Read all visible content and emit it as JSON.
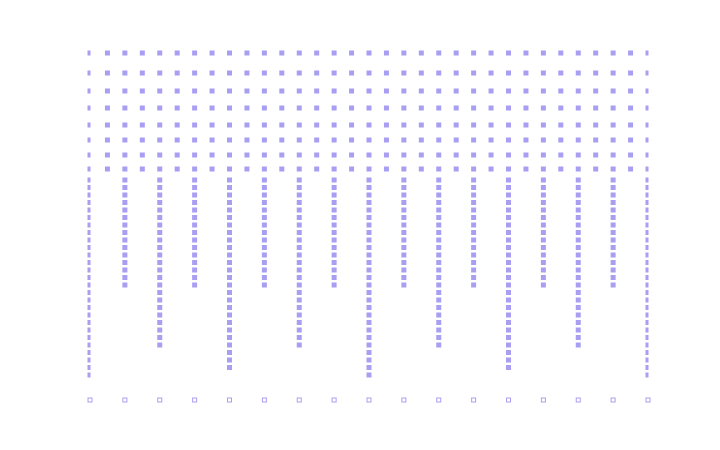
{
  "chart_data": {
    "type": "dot-ruler",
    "color": "#a89ff2",
    "values": [
      5,
      1,
      2,
      1,
      3,
      1,
      2,
      1,
      4,
      1,
      2,
      1,
      3,
      1,
      2,
      1,
      5,
      1,
      2,
      1,
      3,
      1,
      2,
      1,
      4,
      1,
      2,
      1,
      3,
      1,
      2,
      1,
      5
    ]
  }
}
